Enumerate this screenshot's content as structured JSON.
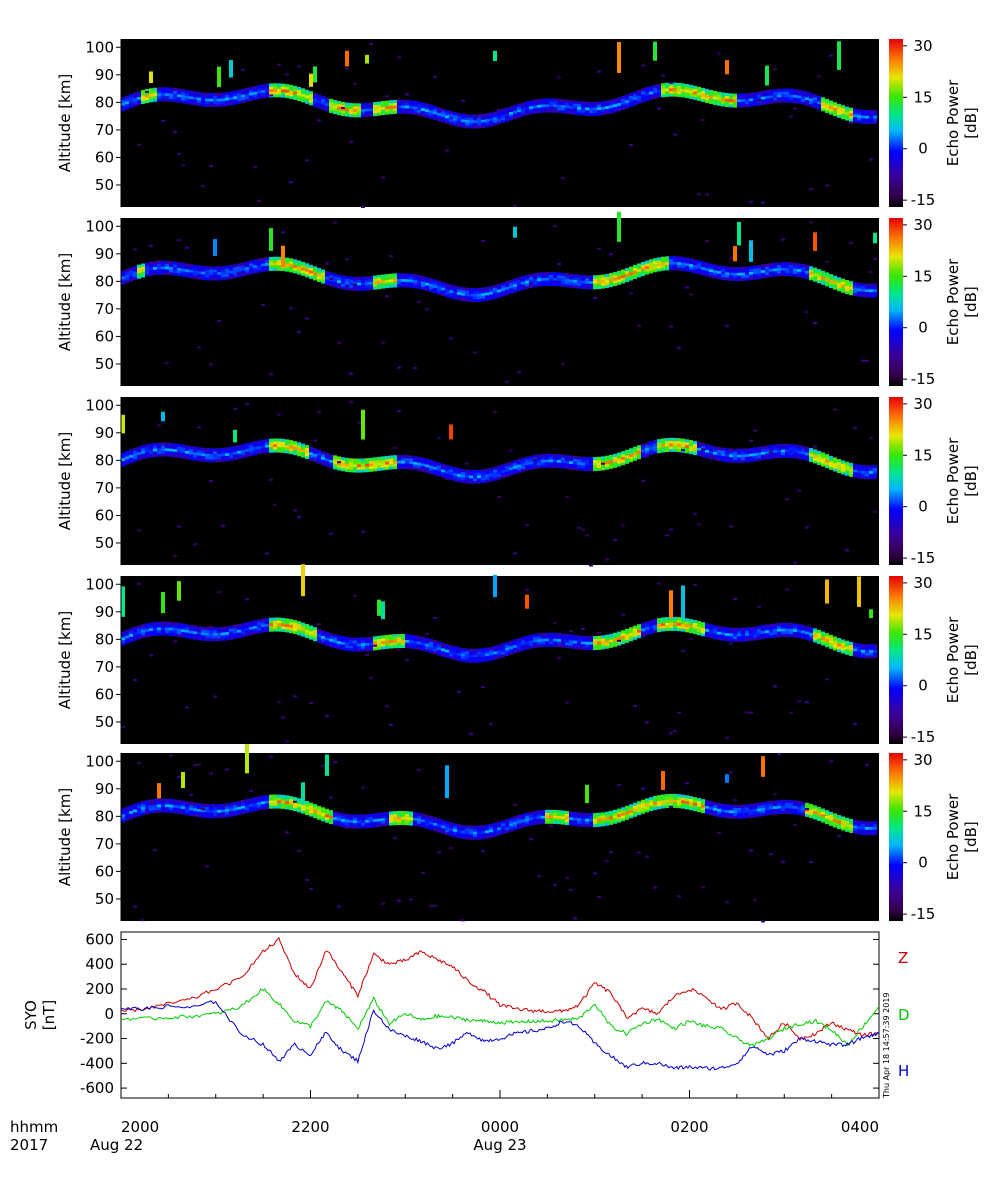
{
  "figure": {
    "time_unit_label": "hhmm",
    "year_label": "2017",
    "x_tick_labels": [
      "2000",
      "2200",
      "0000",
      "0200",
      "0400"
    ],
    "date_labels": [
      "Aug 22",
      "Aug 23"
    ],
    "timestamp": "Thu Apr 18 14:57:39 2019"
  },
  "colors": {
    "background": "#000000",
    "Z": "#cc0000",
    "D": "#00cc00",
    "H": "#0000cc"
  },
  "chart_data": [
    {
      "type": "heatmap",
      "panel": 1,
      "ylabel": "Altitude [km]",
      "y_ticks": [
        50,
        60,
        70,
        80,
        90,
        100
      ],
      "ylim": [
        42,
        103
      ],
      "colorbar": {
        "label": [
          "Echo Power",
          "[dB]"
        ],
        "ticks": [
          -15,
          0,
          15,
          30
        ],
        "range": [
          -17,
          32
        ]
      },
      "layer_altitude_km": 79,
      "bright_intervals": [
        {
          "start": "2013",
          "end": "2022"
        },
        {
          "start": "2135",
          "end": "2203"
        },
        {
          "start": "2211",
          "end": "2233"
        },
        {
          "start": "2240",
          "end": "2255"
        },
        {
          "start": "0142",
          "end": "0230"
        },
        {
          "start": "0325",
          "end": "0345"
        }
      ]
    },
    {
      "type": "heatmap",
      "panel": 2,
      "ylabel": "Altitude [km]",
      "y_ticks": [
        50,
        60,
        70,
        80,
        90,
        100
      ],
      "ylim": [
        42,
        103
      ],
      "colorbar": {
        "label": [
          "Echo Power",
          "[dB]"
        ],
        "ticks": [
          -15,
          0,
          15,
          30
        ],
        "range": [
          -17,
          32
        ]
      },
      "layer_altitude_km": 81,
      "bright_intervals": [
        {
          "start": "2010",
          "end": "2015"
        },
        {
          "start": "2135",
          "end": "2210"
        },
        {
          "start": "2240",
          "end": "2255"
        },
        {
          "start": "0100",
          "end": "0148"
        },
        {
          "start": "0318",
          "end": "0345"
        }
      ]
    },
    {
      "type": "heatmap",
      "panel": 3,
      "ylabel": "Altitude [km]",
      "y_ticks": [
        50,
        60,
        70,
        80,
        90,
        100
      ],
      "ylim": [
        42,
        103
      ],
      "colorbar": {
        "label": [
          "Echo Power",
          "[dB]"
        ],
        "ticks": [
          -15,
          0,
          15,
          30
        ],
        "range": [
          -17,
          32
        ]
      },
      "layer_altitude_km": 80,
      "bright_intervals": [
        {
          "start": "2135",
          "end": "2200"
        },
        {
          "start": "2215",
          "end": "2255"
        },
        {
          "start": "0100",
          "end": "0130"
        },
        {
          "start": "0140",
          "end": "0205"
        },
        {
          "start": "0318",
          "end": "0345"
        }
      ]
    },
    {
      "type": "heatmap",
      "panel": 4,
      "ylabel": "Altitude [km]",
      "y_ticks": [
        50,
        60,
        70,
        80,
        90,
        100
      ],
      "ylim": [
        42,
        103
      ],
      "colorbar": {
        "label": [
          "Echo Power",
          "[dB]"
        ],
        "ticks": [
          -15,
          0,
          15,
          30
        ],
        "range": [
          -17,
          32
        ]
      },
      "layer_altitude_km": 80,
      "bright_intervals": [
        {
          "start": "2135",
          "end": "2205"
        },
        {
          "start": "2240",
          "end": "2300"
        },
        {
          "start": "0100",
          "end": "0130"
        },
        {
          "start": "0140",
          "end": "0210"
        },
        {
          "start": "0320",
          "end": "0345"
        }
      ]
    },
    {
      "type": "heatmap",
      "panel": 5,
      "ylabel": "Altitude [km]",
      "y_ticks": [
        50,
        60,
        70,
        80,
        90,
        100
      ],
      "ylim": [
        42,
        103
      ],
      "colorbar": {
        "label": [
          "Echo Power",
          "[dB]"
        ],
        "ticks": [
          -15,
          0,
          15,
          30
        ],
        "range": [
          -17,
          32
        ]
      },
      "layer_altitude_km": 80,
      "bright_intervals": [
        {
          "start": "2135",
          "end": "2215"
        },
        {
          "start": "2250",
          "end": "2305"
        },
        {
          "start": "0030",
          "end": "0045"
        },
        {
          "start": "0100",
          "end": "0210"
        },
        {
          "start": "0315",
          "end": "0345"
        }
      ]
    },
    {
      "type": "line",
      "panel": 6,
      "ylabel": [
        "SYO",
        "[nT]"
      ],
      "y_ticks": [
        -600,
        -400,
        -200,
        0,
        200,
        400,
        600
      ],
      "ylim": [
        -680,
        660
      ],
      "xlim": [
        "2000",
        "0400"
      ],
      "series": [
        {
          "name": "Z",
          "color": "#cc0000",
          "x": [
            "2000",
            "2015",
            "2030",
            "2045",
            "2100",
            "2115",
            "2130",
            "2140",
            "2150",
            "2200",
            "2210",
            "2220",
            "2230",
            "2240",
            "2250",
            "2300",
            "2310",
            "2320",
            "2330",
            "2340",
            "2350",
            "0000",
            "0010",
            "0020",
            "0030",
            "0040",
            "0050",
            "0100",
            "0110",
            "0120",
            "0130",
            "0140",
            "0150",
            "0200",
            "0210",
            "0220",
            "0230",
            "0240",
            "0250",
            "0300",
            "0310",
            "0320",
            "0330",
            "0340",
            "0350",
            "0400"
          ],
          "values": [
            20,
            40,
            80,
            120,
            200,
            280,
            500,
            600,
            320,
            200,
            520,
            330,
            150,
            480,
            400,
            430,
            500,
            440,
            380,
            260,
            180,
            70,
            40,
            25,
            20,
            20,
            70,
            250,
            170,
            -30,
            40,
            0,
            140,
            200,
            140,
            30,
            90,
            -40,
            -200,
            -70,
            -200,
            -160,
            -70,
            -130,
            -170,
            -160
          ]
        },
        {
          "name": "D",
          "color": "#00cc00",
          "x": [
            "2000",
            "2015",
            "2030",
            "2045",
            "2100",
            "2115",
            "2130",
            "2140",
            "2150",
            "2200",
            "2210",
            "2220",
            "2230",
            "2240",
            "2250",
            "2300",
            "2310",
            "2320",
            "2330",
            "2340",
            "2350",
            "0000",
            "0010",
            "0020",
            "0030",
            "0040",
            "0050",
            "0100",
            "0110",
            "0120",
            "0130",
            "0140",
            "0150",
            "0200",
            "0210",
            "0220",
            "0230",
            "0240",
            "0250",
            "0300",
            "0310",
            "0320",
            "0330",
            "0340",
            "0350",
            "0400"
          ],
          "values": [
            -40,
            -40,
            -30,
            -20,
            0,
            50,
            200,
            80,
            -60,
            -100,
            100,
            20,
            -120,
            120,
            -80,
            0,
            -50,
            -20,
            -30,
            -50,
            -60,
            -70,
            -70,
            -60,
            -60,
            -50,
            -40,
            80,
            -100,
            -160,
            -80,
            -40,
            -120,
            -60,
            -100,
            -120,
            -200,
            -260,
            -200,
            -120,
            -80,
            -60,
            -130,
            -250,
            -100,
            60
          ]
        },
        {
          "name": "H",
          "color": "#0000cc",
          "x": [
            "2000",
            "2015",
            "2030",
            "2045",
            "2100",
            "2115",
            "2130",
            "2140",
            "2150",
            "2200",
            "2210",
            "2220",
            "2230",
            "2240",
            "2250",
            "2300",
            "2310",
            "2320",
            "2330",
            "2340",
            "2350",
            "0000",
            "0010",
            "0020",
            "0030",
            "0040",
            "0050",
            "0100",
            "0110",
            "0120",
            "0130",
            "0140",
            "0150",
            "0200",
            "0210",
            "0220",
            "0230",
            "0240",
            "0250",
            "0300",
            "0310",
            "0320",
            "0330",
            "0340",
            "0350",
            "0400"
          ],
          "values": [
            40,
            40,
            60,
            50,
            100,
            -150,
            -250,
            -380,
            -250,
            -330,
            -150,
            -300,
            -380,
            30,
            -130,
            -180,
            -220,
            -280,
            -240,
            -150,
            -220,
            -200,
            -160,
            -140,
            -120,
            -60,
            -100,
            -240,
            -340,
            -430,
            -400,
            -400,
            -440,
            -430,
            -440,
            -440,
            -400,
            -260,
            -330,
            -300,
            -200,
            -220,
            -250,
            -250,
            -190,
            -160
          ]
        }
      ]
    }
  ]
}
